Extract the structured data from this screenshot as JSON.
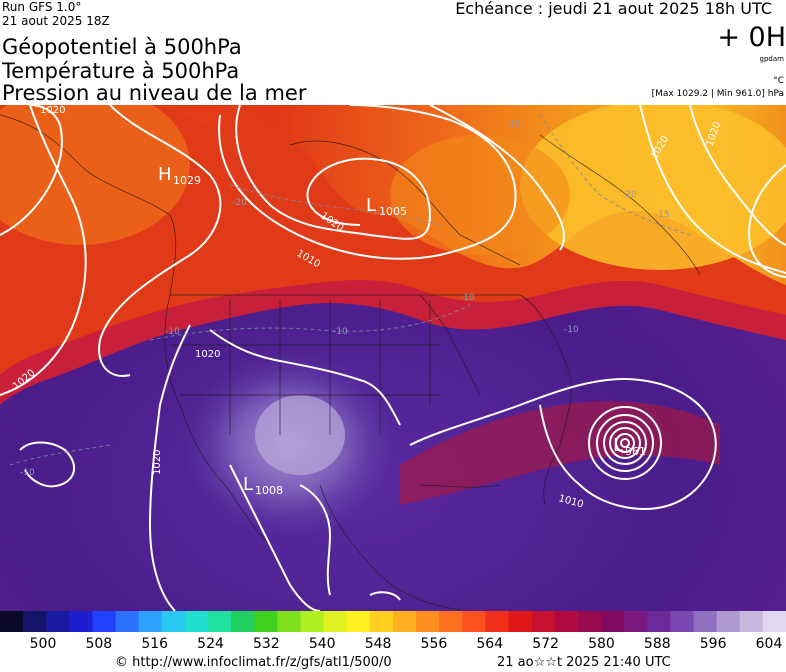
{
  "header": {
    "run_label": "Run GFS 1.0°",
    "run_date": "21 aout 2025 18Z",
    "title_lines": [
      "Géopotentiel à 500hPa",
      "Température à 500hPa",
      "Pression au niveau de la mer"
    ],
    "echeance": "Echéance : jeudi 21 aout 2025 18h UTC",
    "lead_time": "+ 0H",
    "unit_geopotential": "gpdam",
    "unit_temperature": "°C",
    "max_min": "[Max 1029.2 | Min 961.0] hPa"
  },
  "map": {
    "region": "North America",
    "variables": [
      "Géopotentiel à 500hPa",
      "Température à 500hPa",
      "Pression au niveau de la mer"
    ],
    "pressure_centers": [
      {
        "type": "H",
        "value": "1029"
      },
      {
        "type": "L",
        "value": "1005"
      },
      {
        "type": "L",
        "value": "1008"
      },
      {
        "type": "L",
        "value": "961"
      }
    ],
    "isobar_labels": [
      "1020",
      "1010",
      "1020",
      "1020",
      "1020",
      "1020",
      "1020",
      "1010",
      "1020"
    ],
    "temperature_labels": [
      "-10",
      "-10",
      "-10",
      "-15",
      "-20",
      "-20",
      "-10",
      "-10",
      "-15"
    ],
    "colors": {
      "ocean_low": "#4a1d8a",
      "trough_core": "#7a5cb8",
      "ridge_hot": "#e0401a",
      "ridge_warm": "#f59a1a",
      "ridge_yellow": "#fbc02a",
      "isobar": "#ffffff"
    }
  },
  "colorbar": {
    "ticks": [
      500,
      508,
      516,
      524,
      532,
      540,
      548,
      556,
      564,
      572,
      580,
      588,
      596,
      604
    ],
    "colors": [
      "#0a0a2a",
      "#14146a",
      "#1a1aa0",
      "#1e1ed0",
      "#2040ff",
      "#2c70ff",
      "#30a0ff",
      "#28c8f0",
      "#20e0d0",
      "#20e0a0",
      "#20d060",
      "#40d020",
      "#80e020",
      "#b0f020",
      "#e0f020",
      "#fff020",
      "#ffd020",
      "#ffb020",
      "#ff9020",
      "#ff7020",
      "#ff5020",
      "#f03018",
      "#e01818",
      "#c81030",
      "#b00a40",
      "#980a50",
      "#800a60",
      "#7a1a80",
      "#6a2a98",
      "#7a48b0",
      "#9070c0",
      "#b098d0",
      "#c8b8e0",
      "#e0d8f0"
    ]
  },
  "footer": {
    "source": "© http://www.infoclimat.fr/z/gfs/atl1/500/0",
    "generated": "21 ao☆☆t 2025 21:40 UTC"
  }
}
